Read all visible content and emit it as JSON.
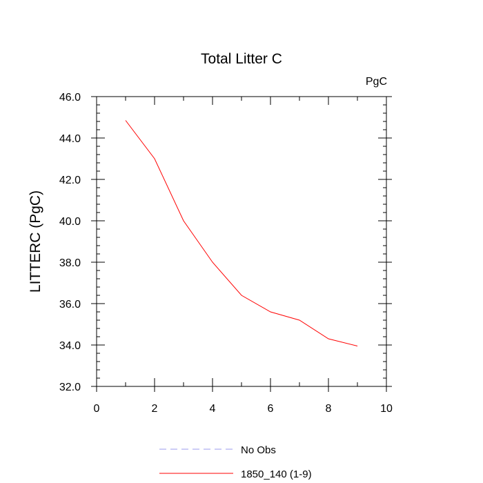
{
  "chart_data": {
    "type": "line",
    "title": "Total Litter C",
    "units": "PgC",
    "xlabel": "",
    "ylabel": "LITTERC  (PgC)",
    "xlim": [
      0,
      10
    ],
    "ylim": [
      32.0,
      46.0
    ],
    "xticks": [
      0,
      2,
      4,
      6,
      8,
      10
    ],
    "xtick_labels": [
      "0",
      "2",
      "4",
      "6",
      "8",
      "10"
    ],
    "yticks": [
      32.0,
      34.0,
      36.0,
      38.0,
      40.0,
      42.0,
      44.0,
      46.0
    ],
    "ytick_labels": [
      "32.0",
      "34.0",
      "36.0",
      "38.0",
      "40.0",
      "42.0",
      "44.0",
      "46.0"
    ],
    "grid": false,
    "legend_position": "bottom",
    "series": [
      {
        "name": "No Obs",
        "color": "#9999ee",
        "dash": true,
        "x": [],
        "y": []
      },
      {
        "name": "1850_140 (1-9)",
        "color": "#ff0000",
        "dash": false,
        "x": [
          1,
          2,
          3,
          4,
          5,
          6,
          7,
          8,
          9
        ],
        "y": [
          44.85,
          43.0,
          40.0,
          38.0,
          36.4,
          35.6,
          35.2,
          34.3,
          33.95
        ]
      }
    ]
  }
}
